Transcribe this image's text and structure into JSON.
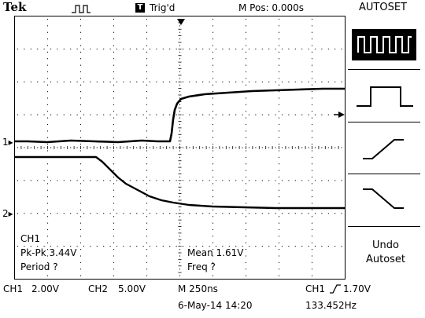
{
  "header": {
    "brand": "Tek",
    "run_icon": "pulse-run-icon",
    "trigger_badge": "T",
    "trigger_status": "Trig'd",
    "m_pos": "M Pos: 0.000s",
    "menu_title": "AUTOSET"
  },
  "menu": {
    "items": [
      {
        "icon": "square-wave-icon",
        "selected": true
      },
      {
        "icon": "single-pulse-icon",
        "selected": false
      },
      {
        "icon": "rising-edge-icon",
        "selected": false
      },
      {
        "icon": "falling-edge-icon",
        "selected": false
      }
    ],
    "undo_line1": "Undo",
    "undo_line2": "Autoset"
  },
  "channels": {
    "ch1_marker": "1",
    "ch2_marker": "2"
  },
  "measurements": {
    "source": "CH1",
    "pkpk": "Pk-Pk 3.44V",
    "period": "Period ?",
    "mean": "Mean 1.61V",
    "freq": "Freq ?"
  },
  "footer": {
    "ch1_label": "CH1",
    "ch1_scale": "2.00V",
    "ch2_label": "CH2",
    "ch2_scale": "5.00V",
    "timebase": "M 250ns",
    "trigger_source": "CH1",
    "trigger_level": "1.70V",
    "date": "6-May-14 14:20",
    "frequency": "133.452Hz"
  },
  "colors": {
    "trace": "#000000",
    "grid": "#000000",
    "background": "#ffffff"
  }
}
